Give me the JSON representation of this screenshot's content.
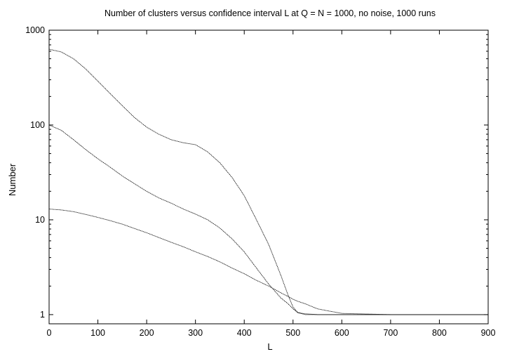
{
  "chart_data": {
    "type": "line",
    "title": "Number of clusters versus confidence interval L at Q = N = 1000, no noise, 1000 runs",
    "xlabel": "L",
    "ylabel": "Number",
    "xlim": [
      0,
      900
    ],
    "ylim": [
      0.8,
      1000
    ],
    "yscale": "log",
    "grid": false,
    "legend": "none",
    "x_ticks": [
      0,
      100,
      200,
      300,
      400,
      500,
      600,
      700,
      800,
      900
    ],
    "x_tick_labels": [
      "0",
      "100",
      "200",
      "300",
      "400",
      "500",
      "600",
      "700",
      "800",
      "900"
    ],
    "y_ticks": [
      1,
      10,
      100,
      1000
    ],
    "y_tick_labels": [
      "1",
      "10",
      "100",
      "1000"
    ],
    "series": [
      {
        "x": [
          0,
          25,
          50,
          75,
          100,
          125,
          150,
          175,
          200,
          225,
          250,
          275,
          300,
          325,
          350,
          375,
          400,
          425,
          450,
          475,
          490,
          500,
          510,
          525,
          550,
          600,
          700,
          800,
          900
        ],
        "values": [
          630,
          590,
          500,
          390,
          290,
          215,
          160,
          120,
          95,
          80,
          70,
          65,
          62,
          52,
          40,
          28,
          18,
          10,
          5.5,
          2.6,
          1.6,
          1.2,
          1.05,
          1.0,
          1.0,
          1.0,
          1.0,
          1.0,
          1.0
        ]
      },
      {
        "x": [
          0,
          25,
          50,
          75,
          100,
          125,
          150,
          175,
          200,
          225,
          250,
          275,
          300,
          325,
          350,
          375,
          400,
          425,
          450,
          475,
          490,
          500,
          510,
          525,
          550,
          600,
          700,
          800,
          900
        ],
        "values": [
          100,
          88,
          70,
          55,
          44,
          36,
          29,
          24,
          20,
          17,
          15,
          13,
          11.5,
          10,
          8.2,
          6.3,
          4.6,
          3.1,
          2.1,
          1.5,
          1.3,
          1.15,
          1.05,
          1.02,
          1.0,
          1.0,
          1.0,
          1.0,
          1.0
        ]
      },
      {
        "x": [
          0,
          25,
          50,
          75,
          100,
          125,
          150,
          175,
          200,
          225,
          250,
          275,
          300,
          325,
          350,
          375,
          400,
          425,
          450,
          475,
          490,
          500,
          510,
          525,
          550,
          600,
          700,
          800,
          900
        ],
        "values": [
          13,
          12.7,
          12.2,
          11.4,
          10.6,
          9.8,
          9.0,
          8.1,
          7.3,
          6.5,
          5.8,
          5.2,
          4.6,
          4.1,
          3.6,
          3.1,
          2.7,
          2.3,
          2.0,
          1.7,
          1.55,
          1.45,
          1.38,
          1.3,
          1.15,
          1.03,
          1.0,
          1.0,
          1.0
        ]
      }
    ]
  }
}
